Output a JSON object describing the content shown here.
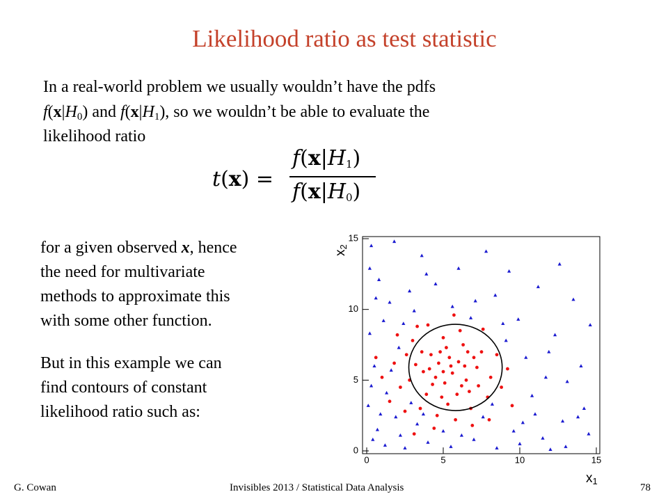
{
  "header": {
    "title": "Likelihood ratio as test statistic"
  },
  "intro": {
    "lines": [
      [
        "In a real-world problem we usually wouldn’t have the pdfs"
      ],
      [
        "f",
        "(",
        "x",
        "|",
        "H",
        "0",
        ") and ",
        "f",
        "(",
        "x",
        "|",
        "H",
        "1",
        "), so we wouldn’t be able to evaluate the"
      ],
      [
        "likelihood ratio"
      ]
    ]
  },
  "formula": {
    "lhs": [
      "t",
      "(",
      "x",
      ") ="
    ],
    "numerator": [
      "f",
      "(",
      "x",
      "|",
      "H",
      "1",
      ")"
    ],
    "denominator": [
      "f",
      "(",
      "x",
      "|",
      "H",
      "0",
      ")"
    ]
  },
  "body": {
    "paragraphs": [
      {
        "lines": [
          [
            "for a given observed ",
            "x",
            ", hence"
          ],
          [
            "the need for multivariate"
          ],
          [
            "methods to approximate this"
          ],
          [
            "with some other function."
          ]
        ]
      },
      {
        "lines": [
          [
            "But in this example we can"
          ],
          [
            "find contours of constant"
          ],
          [
            "likelihood ratio such as:"
          ]
        ]
      }
    ]
  },
  "chart_data": {
    "type": "scatter",
    "xlabel": "x",
    "xlabel_sub": "1",
    "ylabel": "x",
    "ylabel_sub": "2",
    "xlim": [
      0,
      15
    ],
    "ylim": [
      0,
      15
    ],
    "xticks": [
      0,
      5,
      10,
      15
    ],
    "yticks": [
      0,
      5,
      10,
      15
    ],
    "contour": {
      "cx": 5.8,
      "cy": 5.9,
      "r": 3.05,
      "color": "#000000"
    },
    "series": [
      {
        "color": "#ee1111",
        "marker": "circle",
        "x": [
          3.2,
          4.5,
          5.1,
          6.0,
          5.6,
          4.8,
          6.7,
          3.9,
          5.3,
          7.2,
          2.8,
          4.2,
          6.3,
          5.0,
          7.5,
          3.5,
          6.8,
          8.1,
          2.2,
          4.6,
          5.8,
          3.0,
          7.9,
          6.1,
          4.0,
          1.8,
          2.5,
          8.5,
          5.4,
          6.5,
          4.3,
          5.9,
          3.7,
          7.0,
          4.9,
          6.4,
          5.2,
          3.3,
          8.8,
          1.5,
          9.2,
          2.0,
          7.6,
          4.4,
          6.9,
          1.0,
          9.5,
          3.1,
          5.7,
          0.6,
          8.0,
          2.6,
          4.1,
          6.2,
          5.5,
          7.3,
          3.6,
          4.7,
          6.6,
          5.0
        ],
        "y": [
          6.1,
          5.2,
          4.8,
          6.3,
          5.5,
          7.0,
          4.2,
          4.0,
          3.3,
          5.9,
          5.0,
          6.8,
          7.5,
          8.0,
          7.0,
          3.0,
          3.0,
          5.2,
          4.5,
          2.5,
          2.2,
          7.8,
          3.8,
          8.5,
          8.9,
          6.2,
          2.8,
          6.8,
          6.6,
          5.0,
          4.7,
          4.0,
          5.6,
          6.6,
          3.8,
          6.0,
          7.3,
          8.8,
          4.5,
          3.5,
          5.8,
          8.2,
          8.6,
          1.6,
          1.8,
          5.2,
          3.2,
          1.2,
          9.6,
          6.6,
          2.2,
          6.8,
          5.8,
          4.6,
          6.0,
          4.6,
          7.0,
          6.2,
          7.0,
          5.6
        ]
      },
      {
        "color": "#1a1ad0",
        "marker": "triangle",
        "x": [
          0.3,
          0.8,
          1.5,
          0.2,
          0.5,
          0.1,
          0.7,
          1.2,
          2.5,
          4.0,
          5.5,
          7.0,
          8.5,
          10.0,
          11.5,
          13.0,
          14.5,
          14.2,
          12.8,
          11.0,
          9.6,
          8.2,
          6.2,
          3.3,
          1.9,
          1.3,
          2.1,
          1.1,
          2.8,
          3.6,
          1.8,
          4.5,
          6.0,
          7.8,
          8.4,
          5.6,
          3.1,
          9.9,
          11.2,
          13.5,
          12.3,
          10.4,
          14.0,
          13.1,
          11.7,
          9.1,
          10.8,
          12.0,
          0.4,
          2.9,
          0.9,
          0.3,
          1.6,
          2.4,
          0.6,
          3.9,
          7.1,
          12.6,
          14.6,
          9.3,
          6.8,
          8.9,
          10.2,
          7.6,
          5.0,
          3.7,
          2.2,
          13.8,
          11.9,
          0.2
        ],
        "y": [
          14.5,
          12.1,
          10.5,
          8.3,
          6.0,
          3.2,
          1.5,
          0.4,
          0.2,
          0.6,
          0.3,
          0.8,
          0.2,
          0.5,
          0.9,
          0.3,
          1.2,
          3.0,
          2.1,
          2.6,
          1.4,
          3.3,
          1.1,
          1.9,
          2.4,
          4.1,
          7.3,
          9.2,
          11.3,
          13.8,
          14.8,
          11.8,
          12.9,
          14.1,
          11.0,
          10.2,
          9.9,
          9.3,
          11.6,
          10.7,
          8.2,
          6.6,
          6.0,
          4.9,
          5.2,
          7.8,
          3.9,
          0.1,
          0.8,
          3.4,
          2.6,
          4.6,
          5.7,
          9.0,
          10.8,
          12.5,
          10.6,
          13.2,
          8.9,
          12.7,
          9.4,
          9.0,
          2.0,
          2.4,
          1.4,
          2.6,
          1.1,
          2.4,
          7.0,
          12.9
        ]
      }
    ]
  },
  "footer": {
    "author": "G. Cowan",
    "event": "Invisibles 2013 / Statistical Data Analysis",
    "page": "78"
  }
}
